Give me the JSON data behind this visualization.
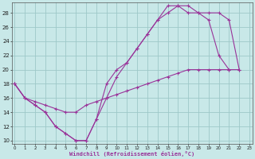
{
  "xlabel": "Windchill (Refroidissement éolien,°C)",
  "bg_color": "#c8e8e8",
  "grid_color": "#9ec8c8",
  "line_color": "#993399",
  "ylim": [
    9.5,
    29.5
  ],
  "xlim": [
    -0.3,
    23.3
  ],
  "yticks": [
    10,
    12,
    14,
    16,
    18,
    20,
    22,
    24,
    26,
    28
  ],
  "xticks": [
    0,
    1,
    2,
    3,
    4,
    5,
    6,
    7,
    8,
    9,
    10,
    11,
    12,
    13,
    14,
    15,
    16,
    17,
    18,
    19,
    20,
    21,
    22,
    23
  ],
  "line1_x": [
    0,
    1,
    2,
    3,
    4,
    5,
    6,
    7,
    8,
    9,
    10,
    11,
    12,
    13,
    14,
    15,
    16,
    17,
    18,
    19,
    20,
    21
  ],
  "line1_y": [
    18,
    16,
    15,
    14,
    12,
    11,
    10,
    10,
    13,
    18,
    20,
    21,
    23,
    25,
    27,
    29,
    29,
    28,
    28,
    27,
    22,
    20
  ],
  "line2_x": [
    0,
    1,
    2,
    3,
    4,
    5,
    6,
    7,
    8,
    9,
    10,
    11,
    12,
    13,
    14,
    15,
    16,
    17,
    18,
    19,
    20,
    21,
    22
  ],
  "line2_y": [
    18,
    16,
    15,
    14,
    12,
    11,
    10,
    10,
    13,
    16,
    19,
    21,
    23,
    25,
    27,
    28,
    29,
    29,
    28,
    28,
    28,
    27,
    20
  ],
  "line3_x": [
    0,
    1,
    2,
    3,
    4,
    5,
    6,
    7,
    8,
    9,
    10,
    11,
    12,
    13,
    14,
    15,
    16,
    17,
    18,
    19,
    20,
    21,
    22
  ],
  "line3_y": [
    18,
    16,
    15.5,
    15,
    14.5,
    14,
    14,
    15,
    15.5,
    16,
    16.5,
    17,
    17.5,
    18,
    18.5,
    19,
    19.5,
    20,
    20,
    20,
    20,
    20,
    20
  ]
}
